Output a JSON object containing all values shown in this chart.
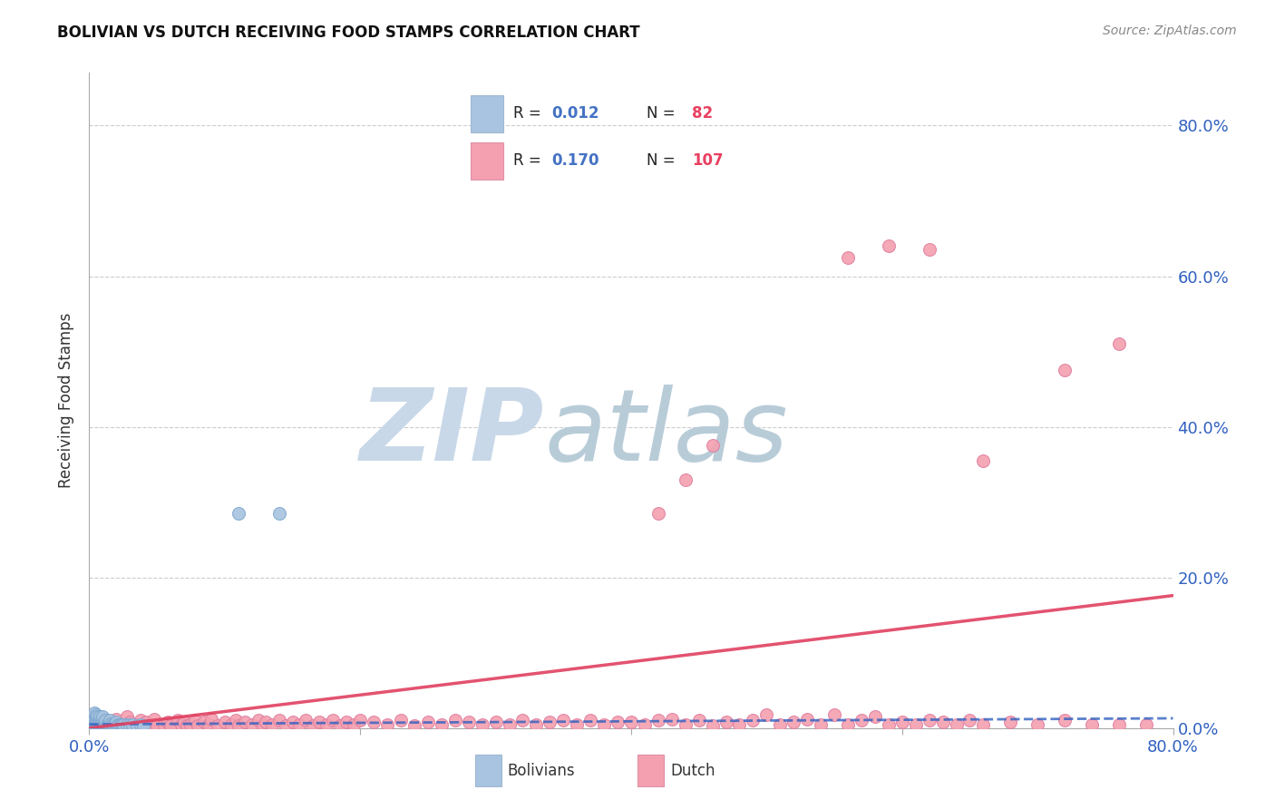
{
  "title": "BOLIVIAN VS DUTCH RECEIVING FOOD STAMPS CORRELATION CHART",
  "source": "Source: ZipAtlas.com",
  "ylabel": "Receiving Food Stamps",
  "ytick_values": [
    0.0,
    0.2,
    0.4,
    0.6,
    0.8
  ],
  "xlim": [
    0.0,
    0.8
  ],
  "ylim": [
    0.0,
    0.87
  ],
  "bolivian_color": "#a8c4e0",
  "dutch_color": "#f4a0b0",
  "bolivian_R": 0.012,
  "bolivian_N": 82,
  "dutch_R": 0.17,
  "dutch_N": 107,
  "trend_bolivian_color": "#3060c0",
  "trend_dutch_color": "#e04060",
  "watermark_zip_color": "#c8d8e8",
  "watermark_atlas_color": "#b0c8d8",
  "grid_color": "#cccccc",
  "legend_value_color": "#4472c4",
  "legend_n_value_color": "#e84060",
  "bolivian_scatter_x": [
    0.001,
    0.002,
    0.002,
    0.003,
    0.003,
    0.003,
    0.003,
    0.003,
    0.004,
    0.004,
    0.004,
    0.004,
    0.004,
    0.005,
    0.005,
    0.005,
    0.005,
    0.005,
    0.005,
    0.006,
    0.006,
    0.006,
    0.006,
    0.006,
    0.007,
    0.007,
    0.007,
    0.007,
    0.007,
    0.008,
    0.008,
    0.008,
    0.008,
    0.008,
    0.008,
    0.009,
    0.009,
    0.009,
    0.009,
    0.01,
    0.01,
    0.01,
    0.01,
    0.01,
    0.011,
    0.011,
    0.011,
    0.012,
    0.012,
    0.012,
    0.012,
    0.013,
    0.013,
    0.014,
    0.014,
    0.015,
    0.015,
    0.015,
    0.015,
    0.016,
    0.016,
    0.017,
    0.018,
    0.018,
    0.019,
    0.02,
    0.02,
    0.02,
    0.021,
    0.022,
    0.023,
    0.024,
    0.025,
    0.025,
    0.028,
    0.03,
    0.032,
    0.035,
    0.038,
    0.04,
    0.11,
    0.14
  ],
  "bolivian_scatter_y": [
    0.005,
    0.003,
    0.008,
    0.002,
    0.004,
    0.006,
    0.01,
    0.015,
    0.003,
    0.005,
    0.007,
    0.012,
    0.02,
    0.002,
    0.004,
    0.006,
    0.008,
    0.012,
    0.018,
    0.003,
    0.005,
    0.007,
    0.01,
    0.015,
    0.002,
    0.004,
    0.006,
    0.008,
    0.012,
    0.002,
    0.003,
    0.005,
    0.007,
    0.01,
    0.015,
    0.002,
    0.004,
    0.006,
    0.01,
    0.002,
    0.004,
    0.006,
    0.008,
    0.015,
    0.003,
    0.005,
    0.008,
    0.002,
    0.004,
    0.006,
    0.01,
    0.003,
    0.005,
    0.003,
    0.006,
    0.003,
    0.005,
    0.007,
    0.01,
    0.003,
    0.006,
    0.004,
    0.003,
    0.005,
    0.004,
    0.003,
    0.005,
    0.008,
    0.004,
    0.004,
    0.004,
    0.004,
    0.003,
    0.005,
    0.004,
    0.004,
    0.004,
    0.003,
    0.004,
    0.003,
    0.285,
    0.285
  ],
  "dutch_scatter_x": [
    0.005,
    0.008,
    0.01,
    0.012,
    0.015,
    0.018,
    0.02,
    0.022,
    0.025,
    0.028,
    0.03,
    0.035,
    0.038,
    0.04,
    0.042,
    0.045,
    0.048,
    0.05,
    0.055,
    0.058,
    0.06,
    0.065,
    0.068,
    0.07,
    0.072,
    0.075,
    0.078,
    0.08,
    0.085,
    0.088,
    0.09,
    0.095,
    0.1,
    0.105,
    0.108,
    0.11,
    0.115,
    0.12,
    0.125,
    0.128,
    0.13,
    0.135,
    0.14,
    0.145,
    0.15,
    0.155,
    0.16,
    0.165,
    0.17,
    0.175,
    0.18,
    0.185,
    0.19,
    0.195,
    0.2,
    0.21,
    0.22,
    0.23,
    0.24,
    0.25,
    0.26,
    0.27,
    0.28,
    0.29,
    0.3,
    0.31,
    0.32,
    0.33,
    0.34,
    0.35,
    0.36,
    0.37,
    0.38,
    0.39,
    0.4,
    0.41,
    0.42,
    0.43,
    0.44,
    0.45,
    0.46,
    0.47,
    0.48,
    0.49,
    0.5,
    0.51,
    0.52,
    0.53,
    0.54,
    0.55,
    0.56,
    0.57,
    0.58,
    0.59,
    0.6,
    0.61,
    0.62,
    0.63,
    0.64,
    0.65,
    0.66,
    0.68,
    0.7,
    0.72,
    0.74,
    0.76,
    0.78
  ],
  "dutch_scatter_y": [
    0.005,
    0.008,
    0.003,
    0.01,
    0.005,
    0.008,
    0.012,
    0.005,
    0.003,
    0.015,
    0.008,
    0.005,
    0.01,
    0.003,
    0.008,
    0.005,
    0.012,
    0.003,
    0.005,
    0.008,
    0.003,
    0.01,
    0.005,
    0.008,
    0.003,
    0.005,
    0.01,
    0.003,
    0.008,
    0.005,
    0.012,
    0.003,
    0.008,
    0.005,
    0.01,
    0.003,
    0.008,
    0.005,
    0.01,
    0.003,
    0.008,
    0.005,
    0.01,
    0.003,
    0.008,
    0.005,
    0.01,
    0.003,
    0.008,
    0.005,
    0.01,
    0.003,
    0.008,
    0.005,
    0.01,
    0.008,
    0.005,
    0.01,
    0.003,
    0.008,
    0.005,
    0.01,
    0.008,
    0.005,
    0.008,
    0.005,
    0.01,
    0.005,
    0.008,
    0.01,
    0.005,
    0.01,
    0.005,
    0.008,
    0.008,
    0.005,
    0.01,
    0.012,
    0.005,
    0.01,
    0.003,
    0.008,
    0.005,
    0.01,
    0.018,
    0.005,
    0.008,
    0.012,
    0.005,
    0.018,
    0.005,
    0.01,
    0.015,
    0.005,
    0.008,
    0.005,
    0.01,
    0.008,
    0.005,
    0.01,
    0.005,
    0.008,
    0.005,
    0.01,
    0.005,
    0.005,
    0.005
  ],
  "dutch_outlier_x": [
    0.42,
    0.44,
    0.46,
    0.56,
    0.59,
    0.62,
    0.66,
    0.72,
    0.76
  ],
  "dutch_outlier_y": [
    0.285,
    0.33,
    0.375,
    0.625,
    0.64,
    0.635,
    0.355,
    0.475,
    0.51
  ]
}
